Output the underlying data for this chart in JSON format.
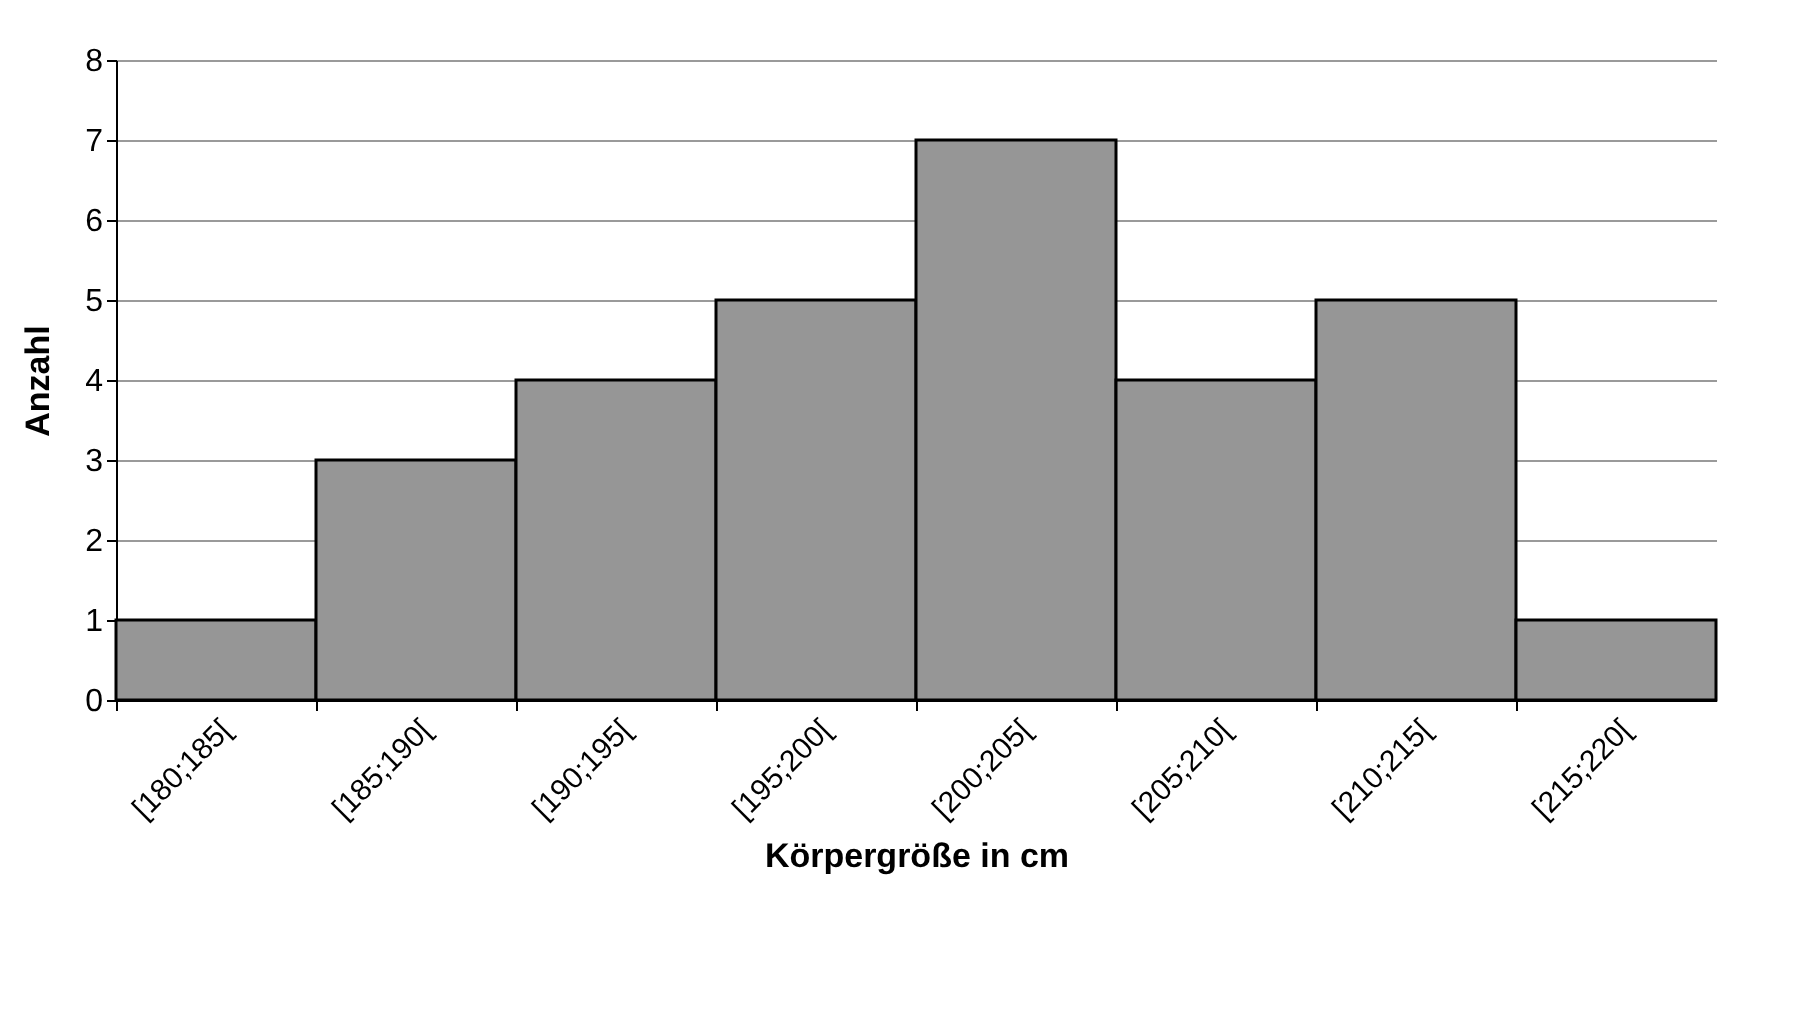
{
  "chart_data": {
    "type": "bar",
    "xlabel": "Körpergröße in cm",
    "ylabel": "Anzahl",
    "categories": [
      "[180;185[",
      "[185;190[",
      "[190;195[",
      "[195;200[",
      "[200;205[",
      "[205;210[",
      "[210;215[",
      "[215;220["
    ],
    "values": [
      1,
      3,
      4,
      5,
      7,
      4,
      5,
      1
    ],
    "color": "#969696",
    "ylim": [
      0,
      8
    ],
    "yticks": [
      0,
      1,
      2,
      3,
      4,
      5,
      6,
      7,
      8
    ],
    "grid": "y"
  }
}
